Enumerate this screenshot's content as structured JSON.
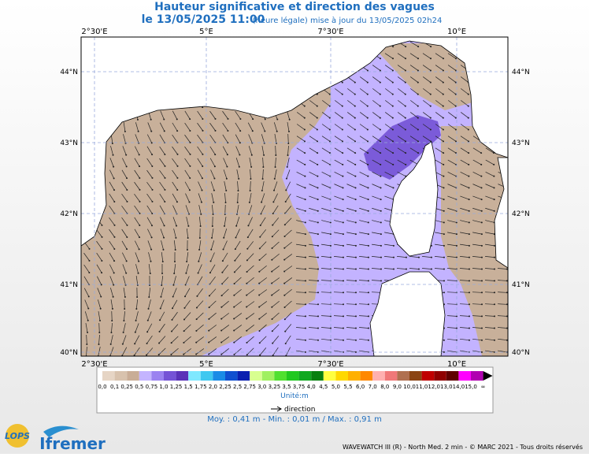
{
  "header": {
    "title": "Hauteur significative et direction des vagues",
    "date": "le 13/05/2025 11:00",
    "update": "(heure légale) mise à jour du 13/05/2025 02h24"
  },
  "map": {
    "lon_labels": [
      "2°30'E",
      "5°E",
      "7°30'E",
      "10°E"
    ],
    "lat_labels": [
      "44°N",
      "43°N",
      "42°N",
      "41°N",
      "40°N"
    ]
  },
  "legend": {
    "labels": [
      "0,0",
      "0,1",
      "0,25",
      "0,5",
      "0,75",
      "1,0",
      "1,25",
      "1,5",
      "1,75",
      "2,0",
      "2,25",
      "2,5",
      "2,75",
      "3,0",
      "3,25",
      "3,5",
      "3,75",
      "4,0",
      "4,5",
      "5,0",
      "5,5",
      "6,0",
      "7,0",
      "8,0",
      "9,0",
      "10,0",
      "11,0",
      "12,0",
      "13,0",
      "14,0",
      "15,0",
      "∞"
    ],
    "colors": [
      "#e6d5c5",
      "#d8c2ad",
      "#c9ad96",
      "#c4b4ff",
      "#9b82f0",
      "#7553d6",
      "#5a33b8",
      "#7fe8ff",
      "#40c8f0",
      "#1a8ce6",
      "#1050d0",
      "#0a20b0",
      "#d8ff90",
      "#a0f060",
      "#50e030",
      "#20c820",
      "#10a820",
      "#088010",
      "#ffff40",
      "#ffd800",
      "#ffb000",
      "#ff8800",
      "#ffb0b0",
      "#f07878",
      "#b07050",
      "#8b4513",
      "#c00000",
      "#900000",
      "#600000",
      "#ff00ff",
      "#b000b0"
    ],
    "unit": "Unité:m",
    "direction": "direction",
    "stats": "Moy. : 0,41 m   -   Min. : 0,01 m / Max. : 0,91 m"
  },
  "footer": {
    "credits": "WAVEWATCH III (R) - North Med. 2 min - © MARC 2021 - Tous droits réservés",
    "logo_lops": "LOPS",
    "logo_ifremer": "Ifremer"
  }
}
